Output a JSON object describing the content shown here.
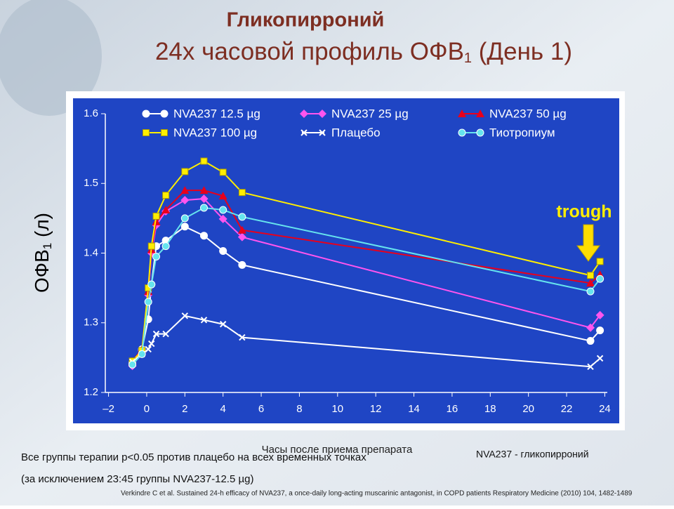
{
  "chart_data": {
    "type": "line",
    "title": "Гликопирроний",
    "subtitle": {
      "text": "24х часовой профиль ОФВ",
      "sub": "1",
      "tail": " (День 1)"
    },
    "y_label": {
      "text": "ОФВ",
      "sub": "1",
      "tail": " (л)"
    },
    "x_label": "Часы после приема препарата",
    "annotation": "trough",
    "x": [
      -0.75,
      -0.25,
      0.083,
      0.25,
      0.5,
      1,
      2,
      3,
      4,
      5,
      23.25,
      23.75
    ],
    "xlim": [
      -3.5,
      24.5
    ],
    "xticks": [
      {
        "value": -2,
        "label": "–2"
      },
      0,
      2,
      4,
      6,
      8,
      10,
      12,
      14,
      16,
      18,
      20,
      22,
      24
    ],
    "ylim": [
      1.2,
      1.6
    ],
    "yticks": [
      1.2,
      1.3,
      1.4,
      1.5,
      1.6
    ],
    "series": [
      {
        "name": "NVA237 12.5 µg",
        "color": "#ffffff",
        "marker": "circle",
        "values": [
          1.243,
          1.262,
          1.305,
          1.355,
          1.41,
          1.418,
          1.438,
          1.425,
          1.403,
          1.383,
          1.274,
          1.289
        ]
      },
      {
        "name": "NVA237 25 µg",
        "color": "#ff55ee",
        "marker": "diamond",
        "values": [
          1.238,
          1.26,
          1.34,
          1.4,
          1.44,
          1.46,
          1.476,
          1.478,
          1.449,
          1.423,
          1.293,
          1.311
        ]
      },
      {
        "name": "NVA237 50 µg",
        "color": "#e8001c",
        "marker": "triangle",
        "values": [
          1.245,
          1.262,
          1.345,
          1.405,
          1.445,
          1.462,
          1.49,
          1.49,
          1.482,
          1.433,
          1.357,
          1.369
        ]
      },
      {
        "name": "NVA237 100 µg",
        "color": "#ffee00",
        "marker": "square",
        "values": [
          1.245,
          1.26,
          1.35,
          1.41,
          1.453,
          1.483,
          1.517,
          1.532,
          1.516,
          1.487,
          1.368,
          1.388
        ]
      },
      {
        "name": "Плацебо",
        "color": "#ffffff",
        "marker": "x",
        "values": [
          1.244,
          1.255,
          1.262,
          1.27,
          1.284,
          1.284,
          1.31,
          1.304,
          1.298,
          1.279,
          1.237,
          1.249
        ]
      },
      {
        "name": "Тиотропиум",
        "color": "#66e4ee",
        "marker": "circle",
        "values": [
          1.24,
          1.255,
          1.33,
          1.355,
          1.395,
          1.41,
          1.45,
          1.465,
          1.462,
          1.452,
          1.345,
          1.363
        ]
      }
    ]
  },
  "notes": [
    "Все группы терапии p<0.05 против плацебо на всех временных точках",
    "(за исключением 23:45 группы NVA237-12.5 µg)"
  ],
  "definition": "NVA237 - гликопирроний",
  "reference": "Verkindre C et al. Sustained 24-h efficacy of NVA237, a once-daily long-acting muscarinic antagonist, in COPD patients Respiratory Medicine (2010) 104, 1482-1489"
}
